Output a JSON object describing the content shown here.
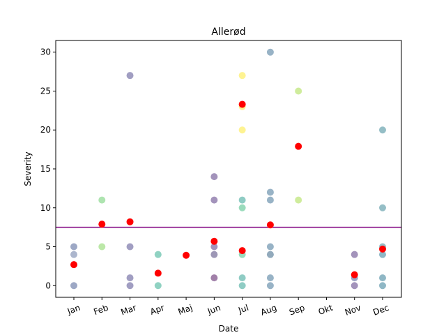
{
  "chart_data": {
    "type": "scatter",
    "title": "Allerød",
    "xlabel": "Date",
    "ylabel": "Severity",
    "categories": [
      "Jan",
      "Feb",
      "Mar",
      "Apr",
      "Maj",
      "Jun",
      "Jul",
      "Aug",
      "Sep",
      "Okt",
      "Nov",
      "Dec"
    ],
    "ylim": [
      -1.5,
      31.5
    ],
    "yticks": [
      0,
      5,
      10,
      15,
      20,
      25,
      30
    ],
    "grid": false,
    "legend": "none",
    "reference_line": {
      "value": 7.5,
      "color": "#800080"
    },
    "mean_color": "#ff0000",
    "series": [
      {
        "role": "observations",
        "points": [
          {
            "x": "Jan",
            "y": 5,
            "color": "#3b528b"
          },
          {
            "x": "Jan",
            "y": 4,
            "color": "#5a6e9c"
          },
          {
            "x": "Jan",
            "y": 0,
            "color": "#3b528b"
          },
          {
            "x": "Feb",
            "y": 11,
            "color": "#5ec962"
          },
          {
            "x": "Feb",
            "y": 5,
            "color": "#7ad151"
          },
          {
            "x": "Mar",
            "y": 27,
            "color": "#433e85"
          },
          {
            "x": "Mar",
            "y": 5,
            "color": "#433e85"
          },
          {
            "x": "Mar",
            "y": 1,
            "color": "#433e85"
          },
          {
            "x": "Mar",
            "y": 0,
            "color": "#433e85"
          },
          {
            "x": "Apr",
            "y": 4,
            "color": "#21a585"
          },
          {
            "x": "Apr",
            "y": 0,
            "color": "#21a585"
          },
          {
            "x": "Jun",
            "y": 14,
            "color": "#482878"
          },
          {
            "x": "Jun",
            "y": 11,
            "color": "#482878"
          },
          {
            "x": "Jun",
            "y": 5,
            "color": "#482878"
          },
          {
            "x": "Jun",
            "y": 4,
            "color": "#3b2f6e"
          },
          {
            "x": "Jun",
            "y": 1,
            "color": "#440154"
          },
          {
            "x": "Jul",
            "y": 27,
            "color": "#fde725"
          },
          {
            "x": "Jul",
            "y": 23,
            "color": "#fde725"
          },
          {
            "x": "Jul",
            "y": 20,
            "color": "#fde725"
          },
          {
            "x": "Jul",
            "y": 11,
            "color": "#1f9a8a"
          },
          {
            "x": "Jul",
            "y": 10,
            "color": "#35b779"
          },
          {
            "x": "Jul",
            "y": 4,
            "color": "#35b779"
          },
          {
            "x": "Jul",
            "y": 1,
            "color": "#1f9a8a"
          },
          {
            "x": "Jul",
            "y": 0,
            "color": "#1f9a8a"
          },
          {
            "x": "Aug",
            "y": 30,
            "color": "#31688e"
          },
          {
            "x": "Aug",
            "y": 12,
            "color": "#31688e"
          },
          {
            "x": "Aug",
            "y": 11,
            "color": "#31688e"
          },
          {
            "x": "Aug",
            "y": 5,
            "color": "#31688e"
          },
          {
            "x": "Aug",
            "y": 4,
            "color": "#26557a"
          },
          {
            "x": "Aug",
            "y": 1,
            "color": "#31688e"
          },
          {
            "x": "Aug",
            "y": 0,
            "color": "#31688e"
          },
          {
            "x": "Sep",
            "y": 25,
            "color": "#a0da39"
          },
          {
            "x": "Sep",
            "y": 11,
            "color": "#a0da39"
          },
          {
            "x": "Nov",
            "y": 4,
            "color": "#482878"
          },
          {
            "x": "Nov",
            "y": 1,
            "color": "#3e4a89"
          },
          {
            "x": "Nov",
            "y": 0,
            "color": "#482878"
          },
          {
            "x": "Dec",
            "y": 20,
            "color": "#2c7e8e"
          },
          {
            "x": "Dec",
            "y": 10,
            "color": "#2c7e8e"
          },
          {
            "x": "Dec",
            "y": 5,
            "color": "#2c7e8e"
          },
          {
            "x": "Dec",
            "y": 4,
            "color": "#1f6f8b"
          },
          {
            "x": "Dec",
            "y": 1,
            "color": "#1f6f8b"
          },
          {
            "x": "Dec",
            "y": 0,
            "color": "#1f6f8b"
          }
        ]
      },
      {
        "role": "monthly-mean",
        "points": [
          {
            "x": "Jan",
            "y": 2.7
          },
          {
            "x": "Feb",
            "y": 7.9
          },
          {
            "x": "Mar",
            "y": 8.2
          },
          {
            "x": "Apr",
            "y": 1.6
          },
          {
            "x": "Maj",
            "y": 3.9
          },
          {
            "x": "Jun",
            "y": 5.7
          },
          {
            "x": "Jul",
            "y": 23.3
          },
          {
            "x": "Jul",
            "y": 4.5
          },
          {
            "x": "Aug",
            "y": 7.8
          },
          {
            "x": "Sep",
            "y": 17.9
          },
          {
            "x": "Nov",
            "y": 1.4
          },
          {
            "x": "Dec",
            "y": 4.7
          }
        ]
      }
    ]
  }
}
